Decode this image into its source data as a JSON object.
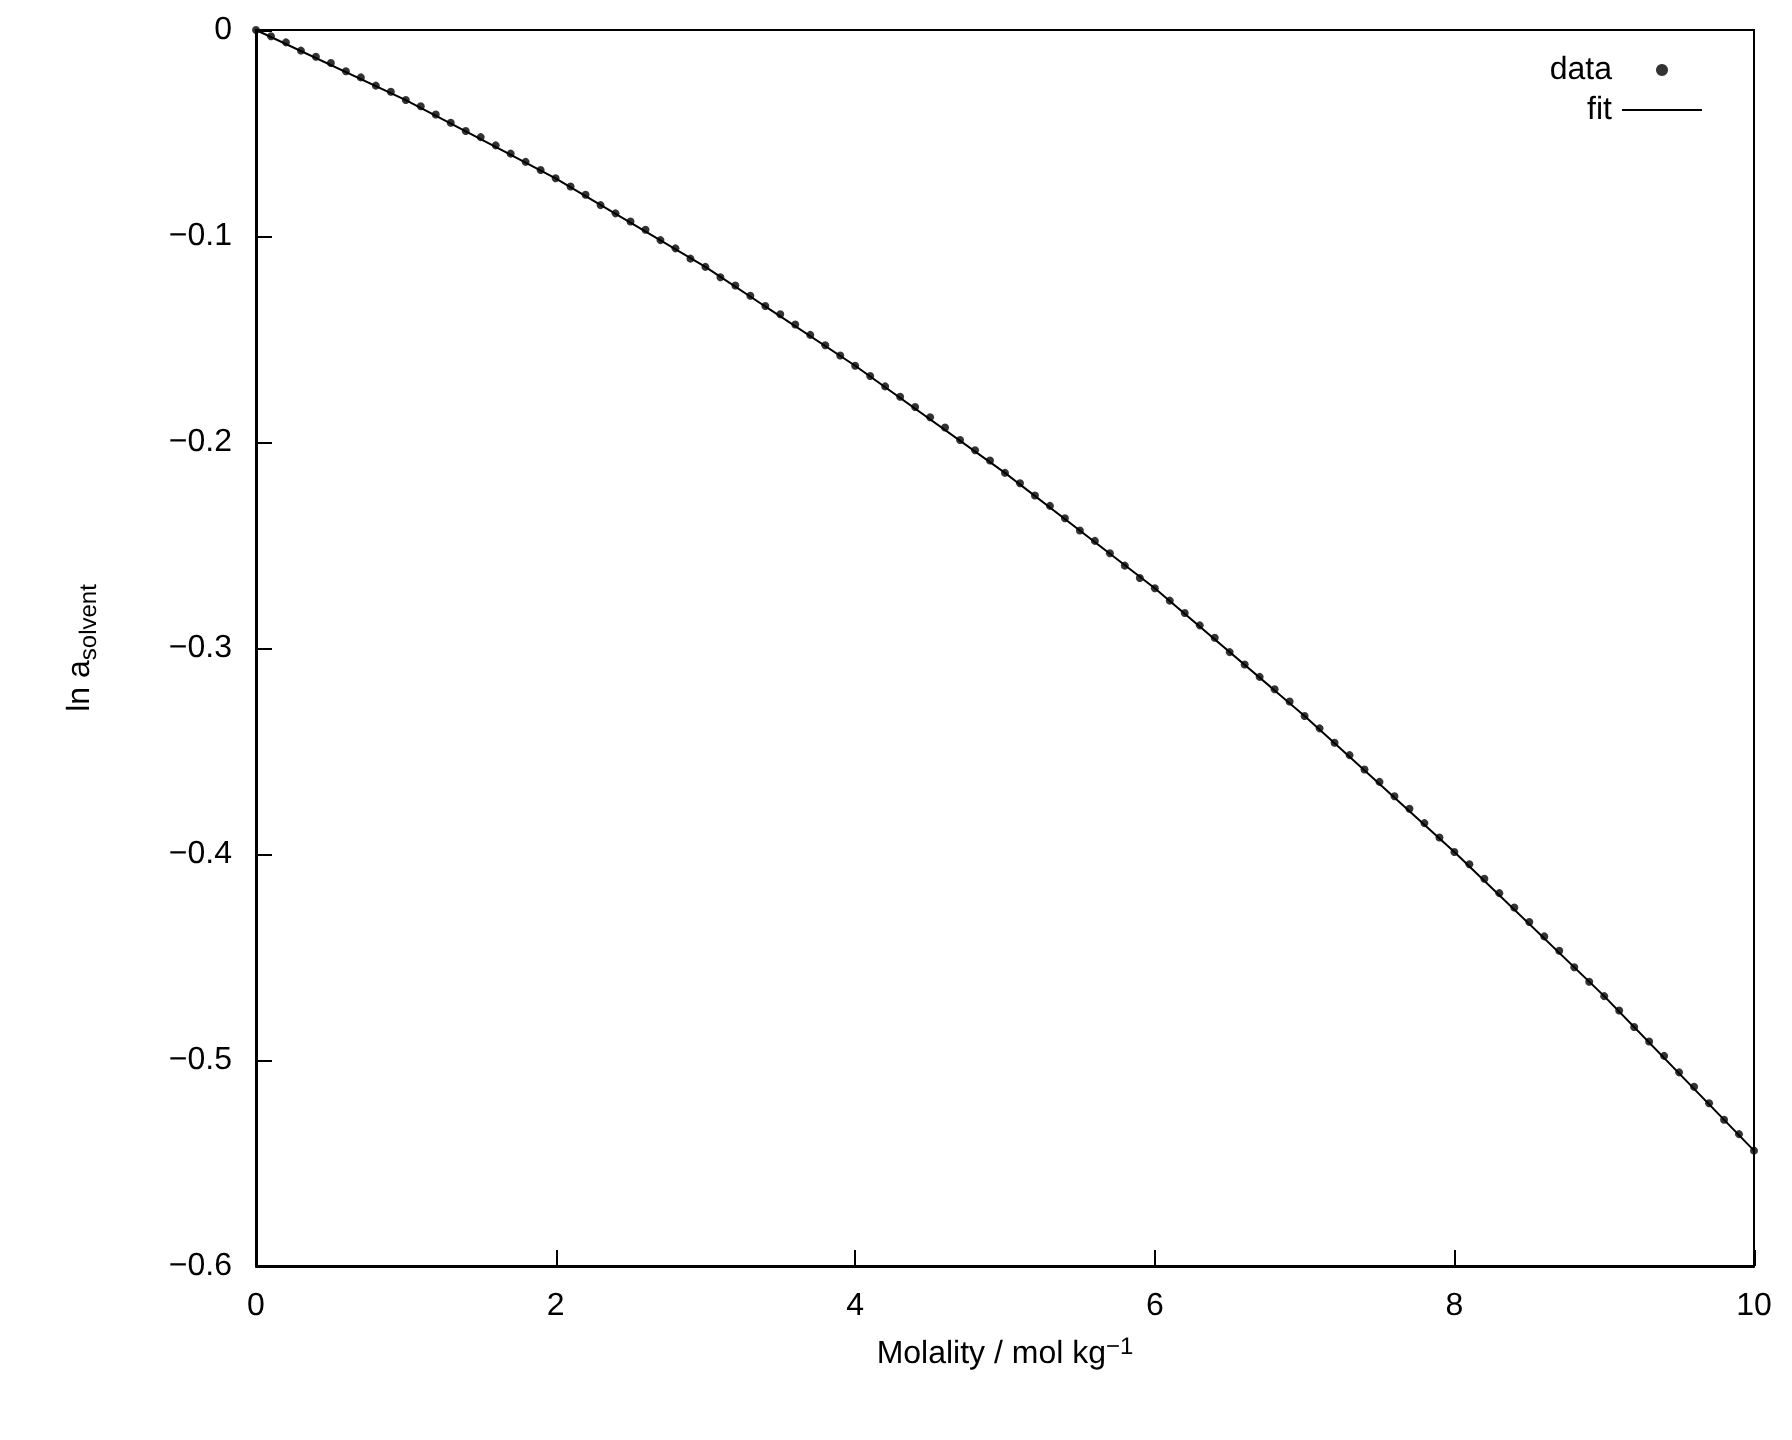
{
  "chart_data": {
    "type": "scatter",
    "xlabel": "Molality / mol kg$^{−1}$",
    "ylabel": "ln a$_{solvent}$",
    "xlim": [
      0,
      10
    ],
    "xticks": [
      0,
      2,
      4,
      6,
      8,
      10
    ],
    "ylim": [
      -0.6,
      0
    ],
    "yticks": [
      {
        "value": -0.6,
        "label": "−0.6"
      },
      {
        "value": -0.5,
        "label": "−0.5"
      },
      {
        "value": -0.4,
        "label": "−0.4"
      },
      {
        "value": -0.3,
        "label": "−0.3"
      },
      {
        "value": -0.2,
        "label": "−0.2"
      },
      {
        "value": -0.1,
        "label": "−0.1"
      },
      {
        "value": 0,
        "label": "0"
      }
    ],
    "grid": false,
    "legend": "top right",
    "x": [
      0,
      0.1,
      0.2,
      0.3,
      0.4,
      0.5,
      0.6,
      0.7,
      0.8,
      0.9,
      1,
      1.1,
      1.2,
      1.3,
      1.4,
      1.5,
      1.6,
      1.7,
      1.8,
      1.9,
      2,
      2.1,
      2.2,
      2.3,
      2.4,
      2.5,
      2.6,
      2.7,
      2.8,
      2.9,
      3,
      3.1,
      3.2,
      3.3,
      3.4,
      3.5,
      3.6,
      3.7,
      3.8,
      3.9,
      4,
      4.1,
      4.2,
      4.3,
      4.4,
      4.5,
      4.6,
      4.7,
      4.8,
      4.9,
      5,
      5.1,
      5.2,
      5.3,
      5.4,
      5.5,
      5.6,
      5.7,
      5.8,
      5.9,
      6,
      6.1,
      6.2,
      6.3,
      6.4,
      6.5,
      6.6,
      6.7,
      6.8,
      6.9,
      7,
      7.1,
      7.2,
      7.3,
      7.4,
      7.5,
      7.6,
      7.7,
      7.8,
      7.9,
      8,
      8.1,
      8.2,
      8.3,
      8.4,
      8.5,
      8.6,
      8.7,
      8.8,
      8.9,
      9,
      9.1,
      9.2,
      9.3,
      9.4,
      9.5,
      9.6,
      9.7,
      9.8,
      9.9,
      10
    ],
    "series": [
      {
        "name": "data",
        "marker": "circle",
        "color": "#000000",
        "values": [
          0,
          -0.003,
          -0.006,
          -0.01,
          -0.013,
          -0.016,
          -0.02,
          -0.023,
          -0.027,
          -0.03,
          -0.034,
          -0.037,
          -0.041,
          -0.045,
          -0.049,
          -0.052,
          -0.056,
          -0.06,
          -0.064,
          -0.068,
          -0.072,
          -0.076,
          -0.08,
          -0.085,
          -0.089,
          -0.093,
          -0.097,
          -0.102,
          -0.106,
          -0.111,
          -0.115,
          -0.12,
          -0.124,
          -0.129,
          -0.134,
          -0.138,
          -0.143,
          -0.148,
          -0.153,
          -0.158,
          -0.163,
          -0.168,
          -0.173,
          -0.178,
          -0.183,
          -0.188,
          -0.193,
          -0.199,
          -0.204,
          -0.209,
          -0.215,
          -0.22,
          -0.226,
          -0.231,
          -0.237,
          -0.243,
          -0.248,
          -0.254,
          -0.26,
          -0.266,
          -0.271,
          -0.277,
          -0.283,
          -0.289,
          -0.295,
          -0.302,
          -0.308,
          -0.314,
          -0.32,
          -0.326,
          -0.333,
          -0.339,
          -0.346,
          -0.352,
          -0.359,
          -0.365,
          -0.372,
          -0.378,
          -0.385,
          -0.392,
          -0.399,
          -0.405,
          -0.412,
          -0.419,
          -0.426,
          -0.433,
          -0.44,
          -0.447,
          -0.455,
          -0.462,
          -0.469,
          -0.476,
          -0.484,
          -0.491,
          -0.498,
          -0.506,
          -0.513,
          -0.521,
          -0.529,
          -0.536,
          -0.544
        ]
      },
      {
        "name": "fit",
        "type": "line",
        "marker": "none",
        "line_style": "solid",
        "color": "#000000",
        "x": [
          0,
          1,
          2,
          3,
          4,
          5,
          6,
          7,
          8,
          9,
          10
        ],
        "values": [
          0,
          -0.034,
          -0.072,
          -0.115,
          -0.163,
          -0.215,
          -0.271,
          -0.333,
          -0.399,
          -0.469,
          -0.544
        ]
      }
    ]
  }
}
